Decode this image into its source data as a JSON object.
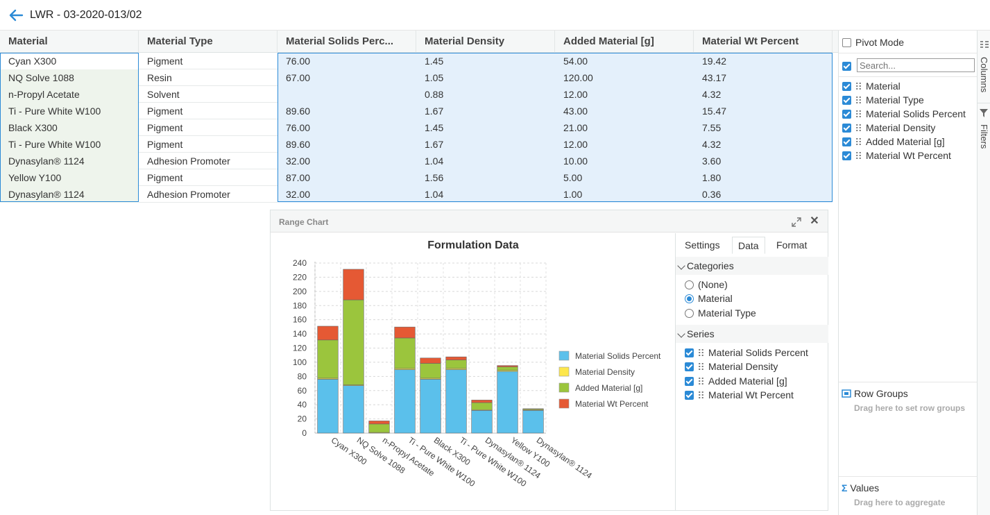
{
  "header": {
    "title": "LWR - 03-2020-013/02"
  },
  "grid": {
    "columns": [
      "Material",
      "Material Type",
      "Material Solids Perc...",
      "Material Density",
      "Added Material [g]",
      "Material Wt Percent"
    ],
    "rows": [
      {
        "material": "Cyan X300",
        "type": "Pigment",
        "solids": "76.00",
        "density": "1.45",
        "added": "54.00",
        "wt": "19.42"
      },
      {
        "material": "NQ Solve 1088",
        "type": "Resin",
        "solids": "67.00",
        "density": "1.05",
        "added": "120.00",
        "wt": "43.17"
      },
      {
        "material": "n-Propyl Acetate",
        "type": "Solvent",
        "solids": "",
        "density": "0.88",
        "added": "12.00",
        "wt": "4.32"
      },
      {
        "material": "Ti - Pure White W100",
        "type": "Pigment",
        "solids": "89.60",
        "density": "1.67",
        "added": "43.00",
        "wt": "15.47"
      },
      {
        "material": "Black X300",
        "type": "Pigment",
        "solids": "76.00",
        "density": "1.45",
        "added": "21.00",
        "wt": "7.55"
      },
      {
        "material": "Ti - Pure White W100",
        "type": "Pigment",
        "solids": "89.60",
        "density": "1.67",
        "added": "12.00",
        "wt": "4.32"
      },
      {
        "material": "Dynasylan® 1124",
        "type": "Adhesion Promoter",
        "solids": "32.00",
        "density": "1.04",
        "added": "10.00",
        "wt": "3.60"
      },
      {
        "material": "Yellow Y100",
        "type": "Pigment",
        "solids": "87.00",
        "density": "1.56",
        "added": "5.00",
        "wt": "1.80"
      },
      {
        "material": "Dynasylan® 1124",
        "type": "Adhesion Promoter",
        "solids": "32.00",
        "density": "1.04",
        "added": "1.00",
        "wt": "0.36"
      }
    ]
  },
  "tool_panel": {
    "pivot_mode": "Pivot Mode",
    "search_placeholder": "Search...",
    "columns": [
      "Material",
      "Material Type",
      "Material Solids Percent",
      "Material Density",
      "Added Material [g]",
      "Material Wt Percent"
    ],
    "row_groups_title": "Row Groups",
    "row_groups_hint": "Drag here to set row groups",
    "values_title": "Values",
    "values_hint": "Drag here to aggregate",
    "side_tabs": {
      "columns": "Columns",
      "filters": "Filters"
    }
  },
  "chart_panel": {
    "header_title": "Range Chart",
    "settings_tabs": [
      "Settings",
      "Data",
      "Format"
    ],
    "active_tab": "Data",
    "categories_title": "Categories",
    "category_options": [
      "(None)",
      "Material",
      "Material Type"
    ],
    "selected_category": "Material",
    "series_title": "Series",
    "series_options": [
      "Material Solids Percent",
      "Material Density",
      "Added Material [g]",
      "Material Wt Percent"
    ]
  },
  "chart_data": {
    "type": "bar",
    "stacked": true,
    "title": "Formulation Data",
    "xlabel": "",
    "ylabel": "",
    "ylim": [
      0,
      240
    ],
    "yticks": [
      0,
      20,
      40,
      60,
      80,
      100,
      120,
      140,
      160,
      180,
      200,
      220,
      240
    ],
    "grid": true,
    "legend_position": "right",
    "categories": [
      "Cyan X300",
      "NQ Solve 1088",
      "n-Propyl Acetate",
      "Ti - Pure White W100",
      "Black X300",
      "Ti - Pure White W100",
      "Dynasylan® 1124",
      "Yellow Y100",
      "Dynasylan® 1124"
    ],
    "series": [
      {
        "name": "Material Solids Percent",
        "color": "#5bc0eb",
        "values": [
          76,
          67,
          0,
          89.6,
          76,
          89.6,
          32,
          87,
          32
        ]
      },
      {
        "name": "Material Density",
        "color": "#fde74c",
        "values": [
          1.45,
          1.05,
          0.88,
          1.67,
          1.45,
          1.67,
          1.04,
          1.56,
          1.04
        ]
      },
      {
        "name": "Added Material [g]",
        "color": "#9bc53d",
        "values": [
          54,
          120,
          12,
          43,
          21,
          12,
          10,
          5,
          1
        ]
      },
      {
        "name": "Material Wt Percent",
        "color": "#e55934",
        "values": [
          19.42,
          43.17,
          4.32,
          15.47,
          7.55,
          4.32,
          3.6,
          1.8,
          0.36
        ]
      }
    ]
  },
  "colors": {
    "accent": "#2b8ad6",
    "selection_fill": "#e4f0fb",
    "material_col_fill": "#eef4ec"
  }
}
